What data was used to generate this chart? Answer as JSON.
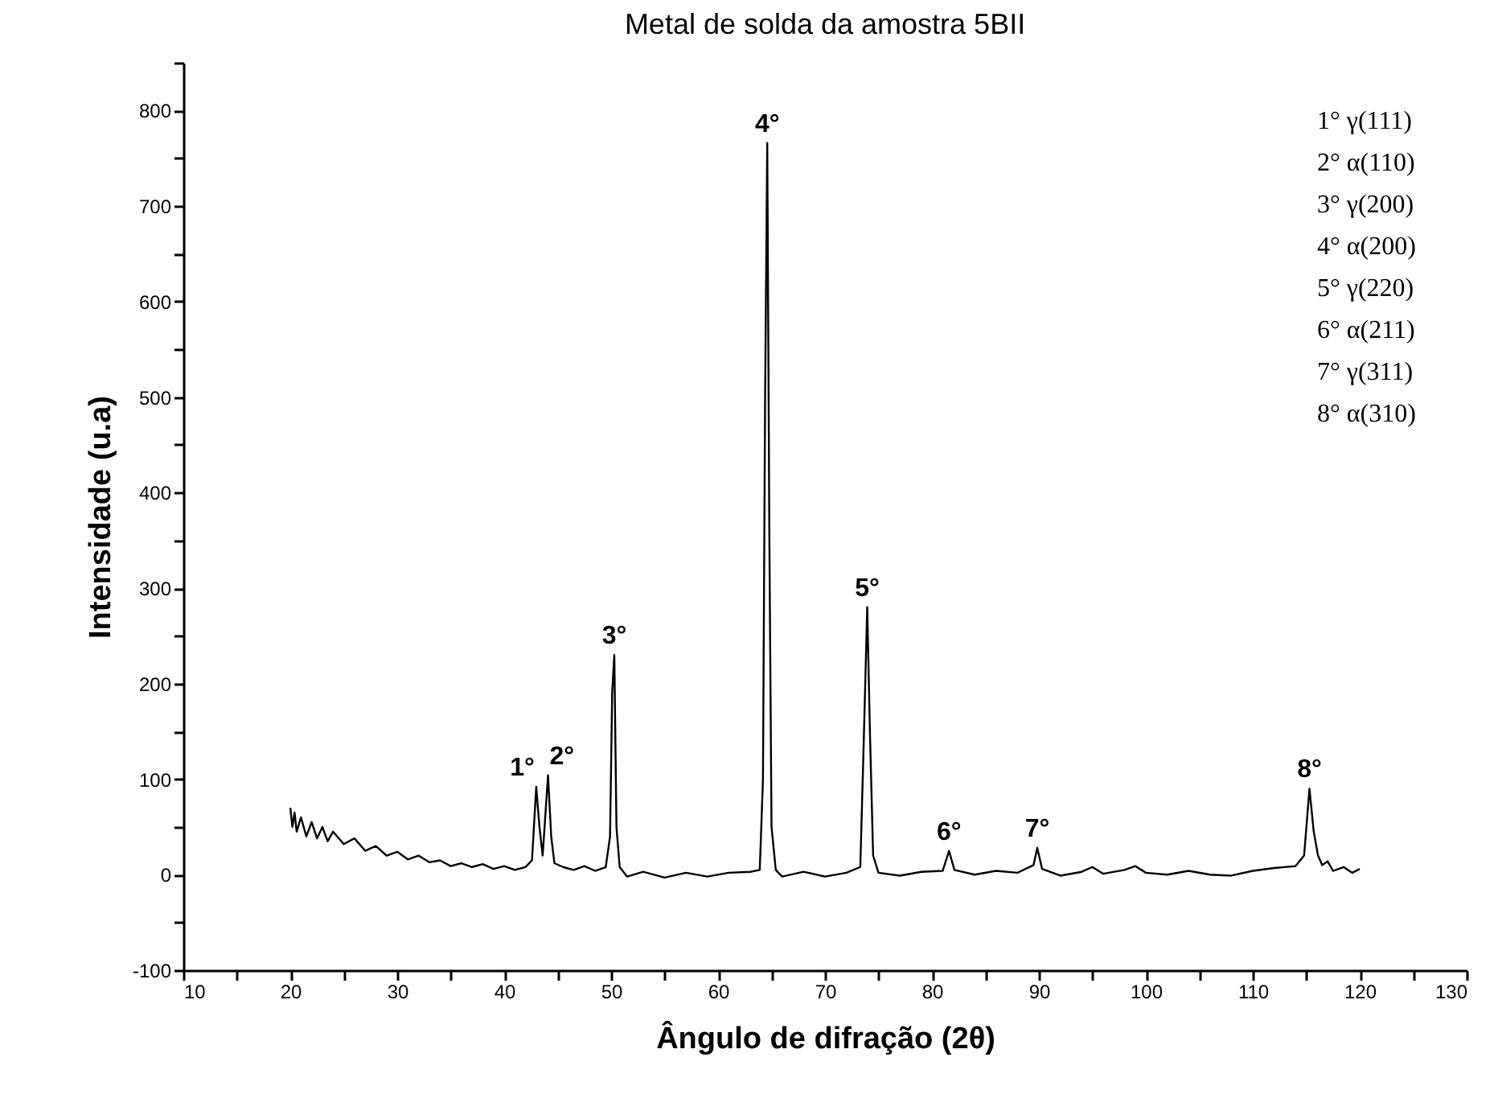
{
  "chart_data": {
    "type": "line",
    "title": "Metal de solda da amostra 5BII",
    "xlabel": "Ângulo de difração (2θ)",
    "ylabel": "Intensidade (u.a)",
    "xlim": [
      10,
      130
    ],
    "ylim": [
      -100,
      850
    ],
    "xticks": [
      10,
      {
        "value": 15,
        "label": null
      },
      20,
      {
        "value": 25,
        "label": null
      },
      30,
      {
        "value": 35,
        "label": null
      },
      40,
      {
        "value": 45,
        "label": null
      },
      50,
      {
        "value": 55,
        "label": null
      },
      60,
      {
        "value": 65,
        "label": null
      },
      70,
      {
        "value": 75,
        "label": null
      },
      80,
      {
        "value": 85,
        "label": null
      },
      90,
      {
        "value": 95,
        "label": null
      },
      100,
      {
        "value": 105,
        "label": null
      },
      110,
      {
        "value": 115,
        "label": null
      },
      120,
      {
        "value": 125,
        "label": null
      },
      130
    ],
    "yticks": [
      -100,
      {
        "value": -50,
        "label": null
      },
      0,
      {
        "value": 50,
        "label": null
      },
      100,
      {
        "value": 150,
        "label": null
      },
      200,
      {
        "value": 250,
        "label": null
      },
      300,
      {
        "value": 350,
        "label": null
      },
      400,
      {
        "value": 450,
        "label": null
      },
      500,
      {
        "value": 550,
        "label": null
      },
      600,
      {
        "value": 650,
        "label": null
      },
      700,
      {
        "value": 750,
        "label": null
      },
      800,
      {
        "value": 850,
        "label": null
      }
    ],
    "grid": false,
    "marker": "none",
    "line_style": "solid",
    "series": [
      {
        "color": "#000000",
        "x": [
          20,
          20.2,
          20.4,
          20.6,
          21,
          21.5,
          22,
          22.5,
          23,
          23.5,
          24,
          25,
          26,
          27,
          28,
          29,
          30,
          31,
          32,
          33,
          34,
          35,
          36,
          37,
          38,
          39,
          40,
          41,
          42,
          42.6,
          43.0,
          43.3,
          43.6,
          44.1,
          44.4,
          44.7,
          45.5,
          46.5,
          47.5,
          48.5,
          49.5,
          49.9,
          50.1,
          50.3,
          50.5,
          50.8,
          51.5,
          53,
          55,
          57,
          59,
          61,
          63,
          63.9,
          64.2,
          64.4,
          64.6,
          64.8,
          65.0,
          65.4,
          66,
          68,
          70,
          72,
          73.3,
          73.6,
          73.95,
          74.2,
          74.5,
          75,
          77,
          79,
          81,
          81.6,
          82.1,
          84,
          86,
          88,
          89.5,
          89.85,
          90.3,
          92,
          94,
          95,
          96,
          98,
          99,
          100,
          102,
          104,
          106,
          108,
          110,
          112,
          114,
          114.8,
          115.3,
          115.7,
          116.1,
          116.5,
          117,
          117.5,
          118.5,
          119.3,
          120
        ],
        "values": [
          70,
          50,
          65,
          45,
          60,
          40,
          55,
          38,
          50,
          35,
          45,
          32,
          38,
          25,
          30,
          20,
          24,
          16,
          20,
          13,
          15,
          9,
          12,
          8,
          11,
          6,
          9,
          5,
          8,
          15,
          92,
          50,
          20,
          104,
          40,
          12,
          8,
          5,
          9,
          4,
          8,
          40,
          190,
          230,
          50,
          8,
          -2,
          3,
          -3,
          2,
          -2,
          2,
          3,
          5,
          100,
          500,
          766,
          350,
          50,
          5,
          -2,
          3,
          -2,
          2,
          8,
          130,
          280,
          150,
          20,
          2,
          -1,
          3,
          4,
          25,
          5,
          0,
          4,
          2,
          10,
          28,
          6,
          -1,
          3,
          8,
          1,
          5,
          9,
          2,
          0,
          4,
          0,
          -1,
          4,
          7,
          9,
          20,
          90,
          45,
          20,
          10,
          14,
          4,
          8,
          2,
          6
        ]
      }
    ],
    "annotations": [
      {
        "text": "1°",
        "x": 43.0,
        "y": 92
      },
      {
        "text": "2°",
        "x": 44.1,
        "y": 104
      },
      {
        "text": "3°",
        "x": 50.3,
        "y": 230
      },
      {
        "text": "4°",
        "x": 64.6,
        "y": 766
      },
      {
        "text": "5°",
        "x": 73.95,
        "y": 280
      },
      {
        "text": "6°",
        "x": 81.6,
        "y": 25
      },
      {
        "text": "7°",
        "x": 89.85,
        "y": 28
      },
      {
        "text": "8°",
        "x": 115.3,
        "y": 90
      },
      "1° γ(111)",
      "2° α(110)",
      "3° γ(200)",
      "4° α(200)",
      "5° γ(220)",
      "6° α(211)",
      "7° γ(311)",
      "8° α(310)"
    ]
  }
}
